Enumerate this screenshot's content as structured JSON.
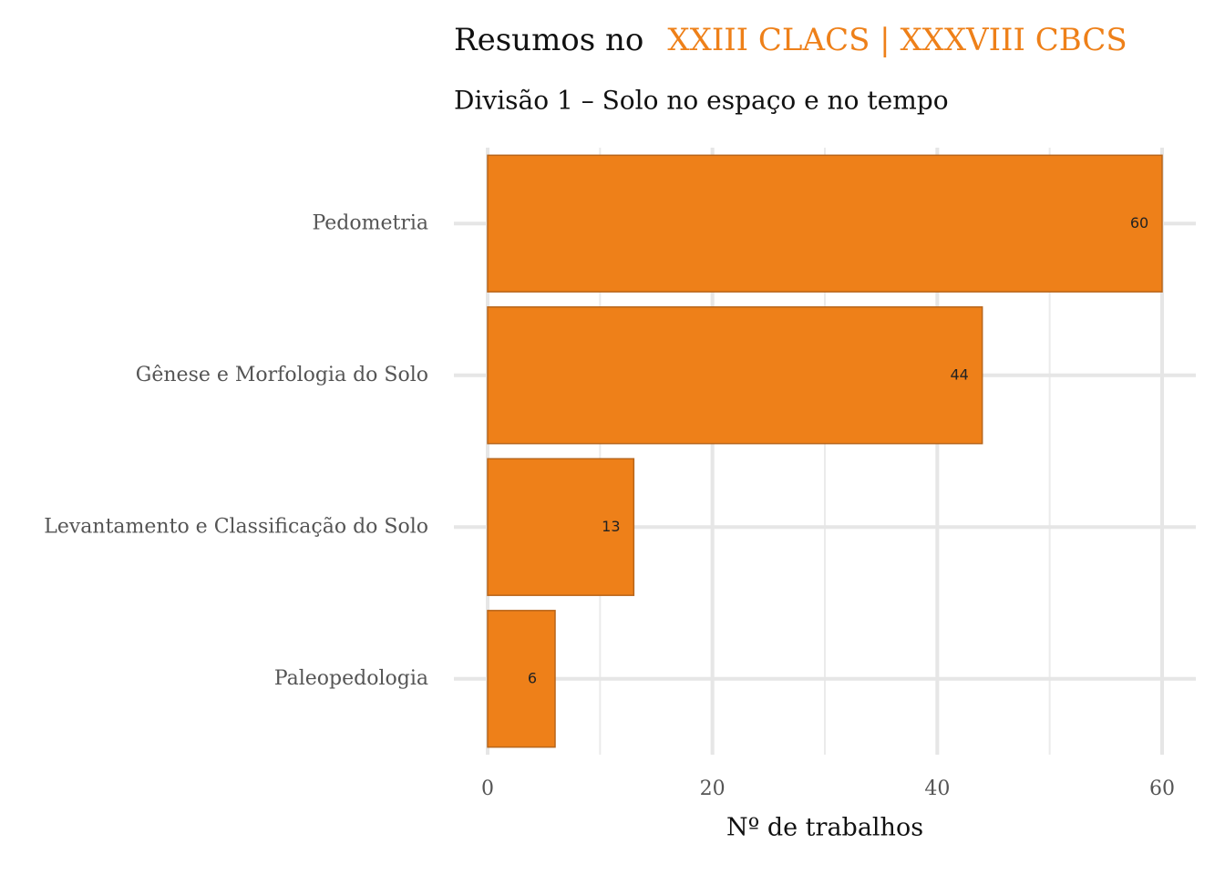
{
  "chart_data": {
    "type": "barh",
    "title": "Resumos no",
    "title_highlight": "XXIII CLACS | XXXVIII CBCS",
    "title_highlight_color": "#ee8019",
    "subtitle": "Divisão 1 – Solo no espaço e no tempo",
    "x_label": "Nº de trabalhos",
    "categories": [
      "Pedometria",
      "Gênese e Morfologia do Solo",
      "Levantamento e Classificação do Solo",
      "Paleopedologia"
    ],
    "values": [
      60,
      44,
      13,
      6
    ],
    "color": "#ee8019",
    "edge_color": "#b8651a",
    "xlim": [
      -3,
      63
    ],
    "xticks": [
      0,
      20,
      40,
      60
    ],
    "minor_xticks": [
      10,
      30,
      50
    ],
    "grid": true
  }
}
